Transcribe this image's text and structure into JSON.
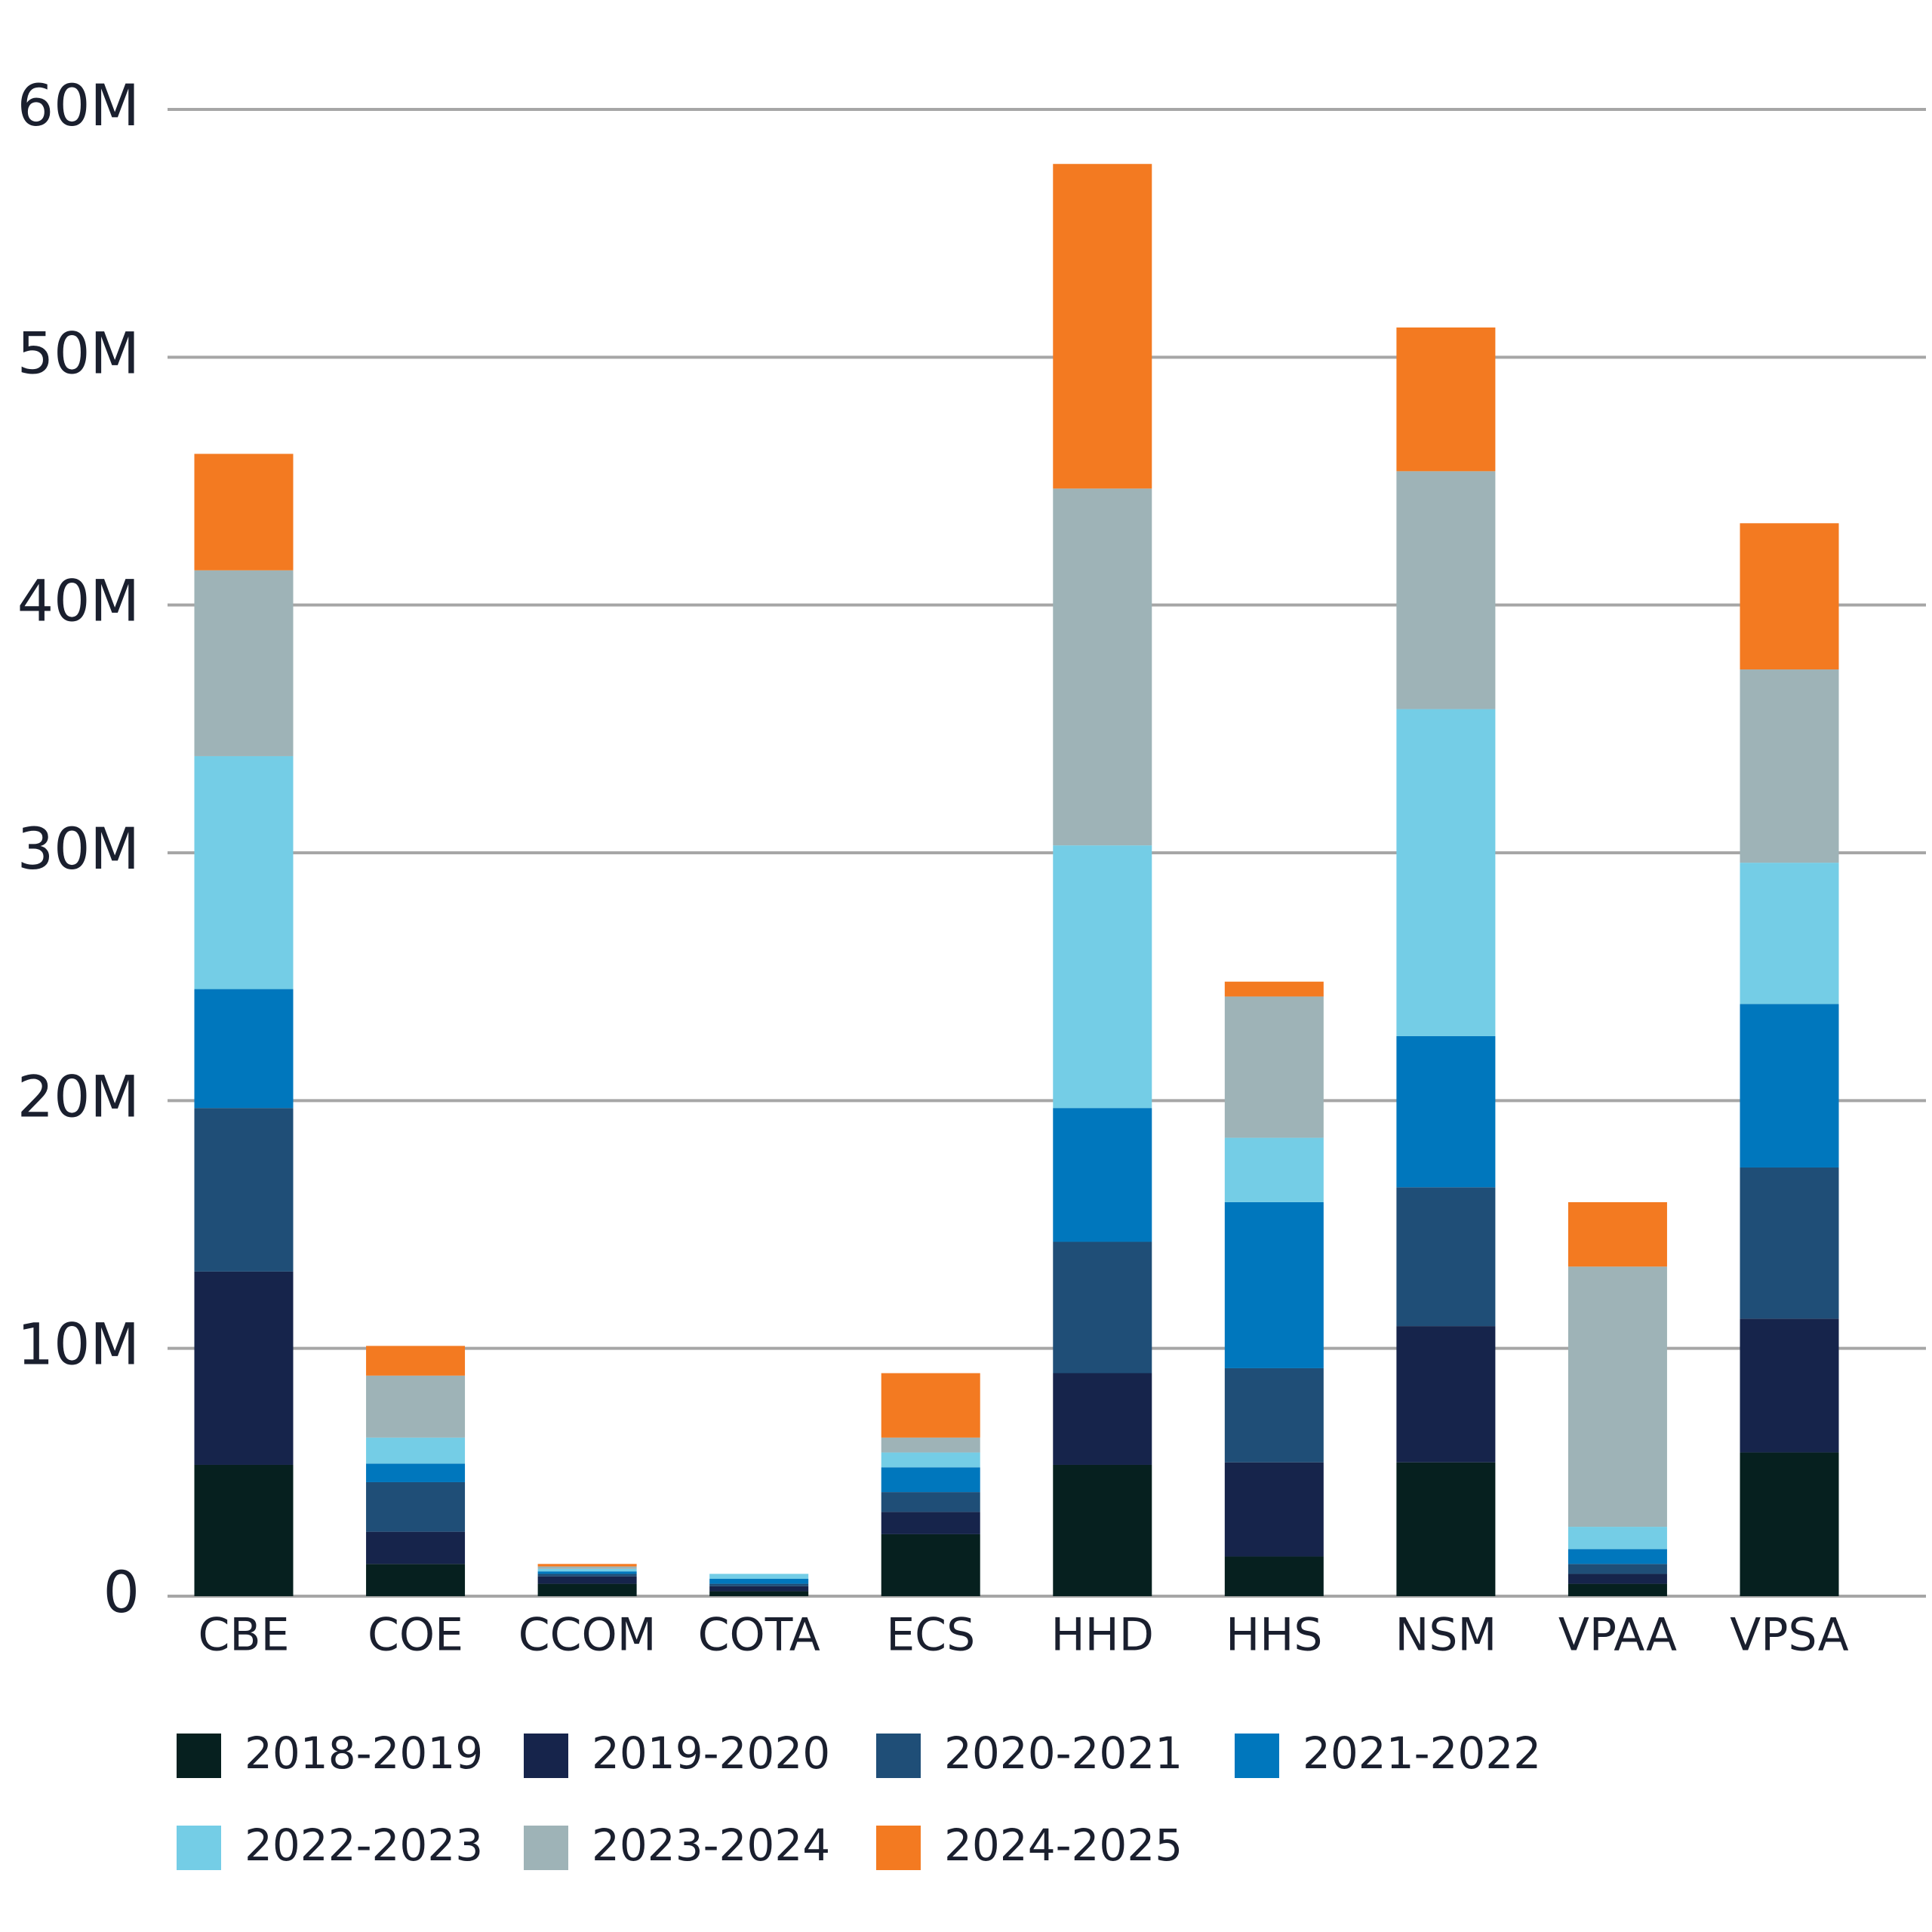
{
  "chart_data": {
    "type": "stacked-bar",
    "categories": [
      "CBE",
      "COE",
      "CCOM",
      "COTA",
      "ECS",
      "HHD",
      "HHS",
      "NSM",
      "VPAA",
      "VPSA"
    ],
    "series": [
      {
        "name": "2018-2019",
        "color": "#06201f",
        "values": [
          5.3,
          1.3,
          0.5,
          0.2,
          2.5,
          5.3,
          1.6,
          5.4,
          0.5,
          5.8
        ]
      },
      {
        "name": "2019-2020",
        "color": "#16244b",
        "values": [
          7.8,
          1.3,
          0.3,
          0.2,
          0.9,
          3.7,
          3.8,
          5.5,
          0.4,
          5.4
        ]
      },
      {
        "name": "2020-2021",
        "color": "#1f4e77",
        "values": [
          6.6,
          2.0,
          0.1,
          0.1,
          0.8,
          5.3,
          3.8,
          5.6,
          0.4,
          6.1
        ]
      },
      {
        "name": "2021-2022",
        "color": "#0077bd",
        "values": [
          4.8,
          0.75,
          0.1,
          0.2,
          1.0,
          5.4,
          6.7,
          6.1,
          0.6,
          6.6
        ]
      },
      {
        "name": "2022-2023",
        "color": "#74cde6",
        "values": [
          9.4,
          1.05,
          0.1,
          0.2,
          0.6,
          10.6,
          2.6,
          13.2,
          0.9,
          5.7
        ]
      },
      {
        "name": "2023-2024",
        "color": "#9eb3b7",
        "values": [
          7.5,
          2.5,
          0.1,
          0,
          0.6,
          14.4,
          5.7,
          9.6,
          10.5,
          7.8
        ]
      },
      {
        "name": "2024-2025",
        "color": "#f37a21",
        "values": [
          4.7,
          1.2,
          0.1,
          0,
          2.6,
          13.1,
          0.6,
          5.8,
          2.6,
          5.9
        ]
      }
    ],
    "ylim": [
      0,
      60
    ],
    "yticks": [
      0,
      {
        "value": 10,
        "label": "10M"
      },
      {
        "value": 20,
        "label": "20M"
      },
      {
        "value": 30,
        "label": "30M"
      },
      {
        "value": 40,
        "label": "40M"
      },
      {
        "value": 50,
        "label": "50M"
      },
      {
        "value": 60,
        "label": "60M"
      }
    ],
    "grid": true
  }
}
